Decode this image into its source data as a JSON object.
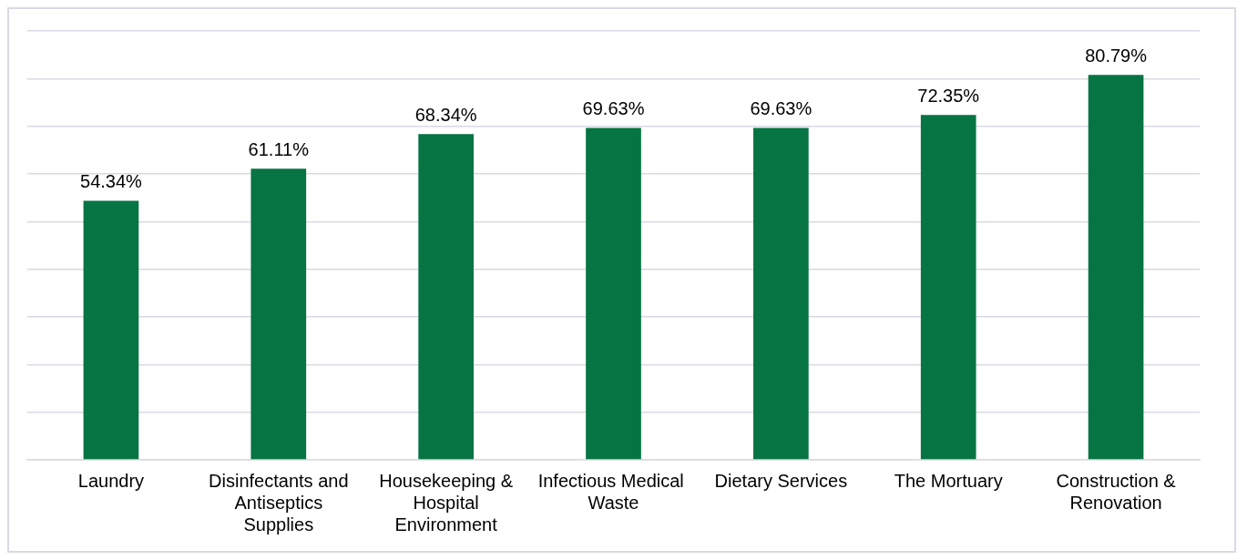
{
  "chart_data": {
    "type": "bar",
    "categories": [
      "Laundry",
      "Disinfectants and Antiseptics Supplies",
      "Housekeeping & Hospital Environment",
      "Infectious Medical  Waste",
      "Dietary Services",
      "The Mortuary",
      "Construction & Renovation"
    ],
    "values": [
      54.34,
      61.11,
      68.34,
      69.63,
      69.63,
      72.35,
      80.79
    ],
    "value_labels": [
      "54.34%",
      "61.11%",
      "68.34%",
      "69.63%",
      "69.63%",
      "72.35%",
      "80.79%"
    ],
    "color": "#077443",
    "ylim": [
      0,
      90
    ],
    "yticks": [
      {
        "value": 0,
        "label": null
      },
      {
        "value": 10,
        "label": null
      },
      {
        "value": 20,
        "label": null
      },
      {
        "value": 30,
        "label": null
      },
      {
        "value": 40,
        "label": null
      },
      {
        "value": 50,
        "label": null
      },
      {
        "value": 60,
        "label": null
      },
      {
        "value": 70,
        "label": null
      },
      {
        "value": 80,
        "label": null
      },
      {
        "value": 90,
        "label": null
      }
    ],
    "grid": "y",
    "tick_labels": "x"
  }
}
